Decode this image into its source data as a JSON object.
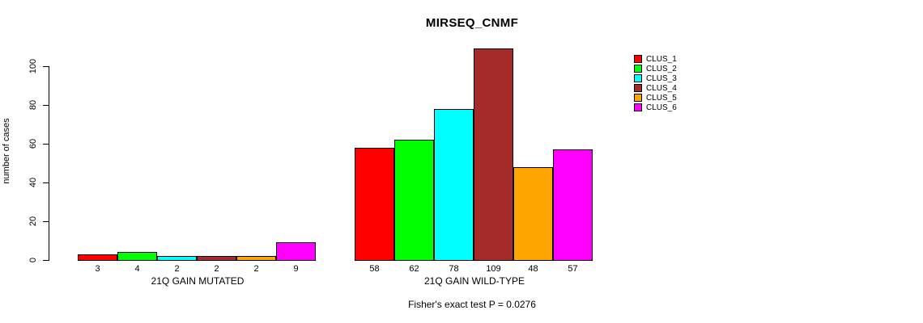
{
  "chart_data": {
    "type": "bar",
    "title": "MIRSEQ_CNMF",
    "ylabel": "number of cases",
    "xlabel": "",
    "ylim": [
      0,
      110
    ],
    "yticks": [
      0,
      20,
      40,
      60,
      80,
      100
    ],
    "grid": false,
    "legend_position": "right-outside",
    "categories": [
      "21Q GAIN MUTATED",
      "21Q GAIN WILD-TYPE"
    ],
    "series": [
      {
        "name": "CLUS_1",
        "color": "#ff0000",
        "values": [
          3,
          58
        ]
      },
      {
        "name": "CLUS_2",
        "color": "#00ff00",
        "values": [
          4,
          62
        ]
      },
      {
        "name": "CLUS_3",
        "color": "#00ffff",
        "values": [
          2,
          78
        ]
      },
      {
        "name": "CLUS_4",
        "color": "#a52a2a",
        "values": [
          2,
          109
        ]
      },
      {
        "name": "CLUS_5",
        "color": "#ffa500",
        "values": [
          2,
          48
        ]
      },
      {
        "name": "CLUS_6",
        "color": "#ff00ff",
        "values": [
          9,
          57
        ]
      }
    ],
    "bar_value_labels": [
      [
        3,
        4,
        2,
        2,
        2,
        9
      ],
      [
        58,
        62,
        78,
        109,
        48,
        57
      ]
    ],
    "footnote": "Fisher's exact test P = 0.0276"
  }
}
